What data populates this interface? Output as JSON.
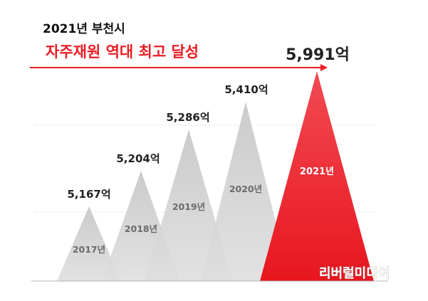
{
  "header": {
    "title": "2021년 부천시",
    "subtitle": "자주재원 역대 최고 달성"
  },
  "watermark": "리버럴미디어",
  "colors": {
    "accent": "#ea1c24",
    "gray_peak": "#cfcfcf",
    "highlight_peak": "#f0414a",
    "gridline": "#cde6ea"
  },
  "chart_data": {
    "type": "bar",
    "categories": [
      "2017년",
      "2018년",
      "2019년",
      "2020년",
      "2021년"
    ],
    "values": [
      5167,
      5204,
      5286,
      5410,
      5991
    ],
    "value_labels": [
      "5,167억",
      "5,204억",
      "5,286억",
      "5,410억",
      "5,991억"
    ],
    "highlight_index": 4,
    "title": "자주재원 역대 최고 달성",
    "xlabel": "",
    "ylabel": "",
    "grid": true,
    "legend": "none"
  }
}
